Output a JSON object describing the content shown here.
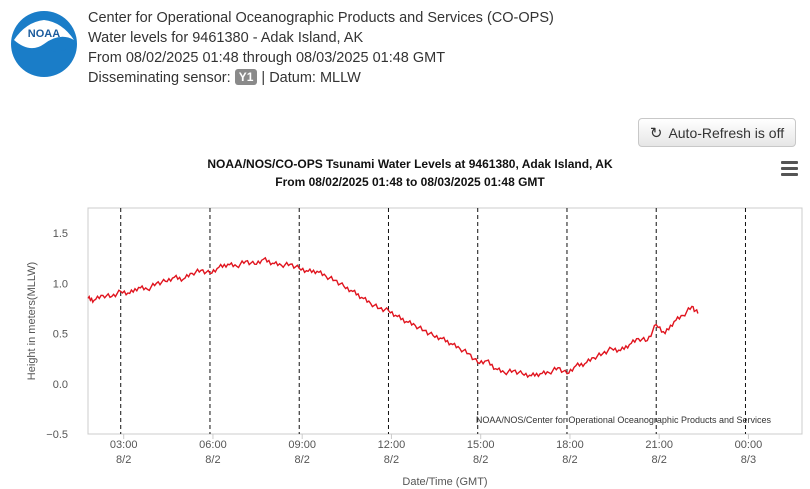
{
  "header": {
    "org_line": "Center for Operational Oceanographic Products and Services (CO-OPS)",
    "station_line": "Water levels for 9461380 - Adak Island, AK",
    "range_line": "From 08/02/2025 01:48 through 08/03/2025 01:48 GMT",
    "sensor_label": "Disseminating sensor:",
    "sensor_badge": "Y1",
    "datum_text": "| Datum: MLLW",
    "logo_text": "NOAA"
  },
  "toolbar": {
    "refresh_label": "Auto-Refresh is off",
    "refresh_icon": "refresh-icon",
    "menu_icon": "hamburger-menu-icon"
  },
  "colors": {
    "series": "#e0141e",
    "logo_blue": "#1a7dc8"
  },
  "chart_data": {
    "type": "line",
    "title": "NOAA/NOS/CO-OPS Tsunami Water Levels at 9461380, Adak Island, AK",
    "subtitle": "From 08/02/2025 01:48 to 08/03/2025 01:48 GMT",
    "xlabel": "Date/Time (GMT)",
    "ylabel": "Height in meters(MLLW)",
    "credit": "NOAA/NOS/Center for Operational Oceanographic Products and Services",
    "xlim_hours": [
      1.8,
      25.8
    ],
    "ylim": [
      -0.5,
      1.75
    ],
    "yticks": [
      -0.5,
      0.0,
      0.5,
      1.0,
      1.5
    ],
    "ytick_labels": [
      "−0.5",
      "0.0",
      "0.5",
      "1.0",
      "1.5"
    ],
    "xticks": [
      {
        "hour": 3,
        "time": "03:00",
        "date": "8/2"
      },
      {
        "hour": 6,
        "time": "06:00",
        "date": "8/2"
      },
      {
        "hour": 9,
        "time": "09:00",
        "date": "8/2"
      },
      {
        "hour": 12,
        "time": "12:00",
        "date": "8/2"
      },
      {
        "hour": 15,
        "time": "15:00",
        "date": "8/2"
      },
      {
        "hour": 18,
        "time": "18:00",
        "date": "8/2"
      },
      {
        "hour": 21,
        "time": "21:00",
        "date": "8/2"
      },
      {
        "hour": 24,
        "time": "00:00",
        "date": "8/3"
      }
    ],
    "vertical_markers_hours": [
      2.9,
      5.9,
      8.9,
      11.9,
      14.9,
      17.9,
      20.9,
      23.9
    ],
    "grid": false,
    "series": [
      {
        "x": [
          1.8,
          2.0,
          2.3,
          2.6,
          2.9,
          3.2,
          3.5,
          3.8,
          4.1,
          4.4,
          4.7,
          5.0,
          5.3,
          5.6,
          5.9,
          6.2,
          6.5,
          6.8,
          7.1,
          7.4,
          7.7,
          8.0,
          8.3,
          8.6,
          8.9,
          9.2,
          9.5,
          9.8,
          10.1,
          10.4,
          10.7,
          11.0,
          11.3,
          11.6,
          11.9,
          12.2,
          12.5,
          12.8,
          13.1,
          13.4,
          13.7,
          14.0,
          14.3,
          14.6,
          14.9,
          15.2,
          15.5,
          15.8,
          16.1,
          16.4,
          16.7,
          17.0,
          17.3,
          17.6,
          17.9,
          18.2,
          18.5,
          18.8,
          19.1,
          19.4,
          19.7,
          20.0,
          20.3,
          20.6,
          20.9,
          21.2,
          21.5,
          21.8,
          22.1,
          22.3
        ],
        "y": [
          0.85,
          0.83,
          0.88,
          0.87,
          0.92,
          0.9,
          0.96,
          0.94,
          1.0,
          1.02,
          1.06,
          1.04,
          1.1,
          1.13,
          1.1,
          1.16,
          1.19,
          1.17,
          1.22,
          1.19,
          1.24,
          1.2,
          1.18,
          1.19,
          1.15,
          1.12,
          1.12,
          1.07,
          1.03,
          0.97,
          0.92,
          0.86,
          0.8,
          0.75,
          0.73,
          0.67,
          0.62,
          0.58,
          0.53,
          0.48,
          0.45,
          0.4,
          0.35,
          0.3,
          0.21,
          0.23,
          0.15,
          0.11,
          0.13,
          0.1,
          0.08,
          0.1,
          0.11,
          0.16,
          0.1,
          0.18,
          0.2,
          0.26,
          0.3,
          0.35,
          0.33,
          0.39,
          0.45,
          0.43,
          0.59,
          0.5,
          0.62,
          0.68,
          0.77,
          0.7
        ]
      }
    ]
  }
}
